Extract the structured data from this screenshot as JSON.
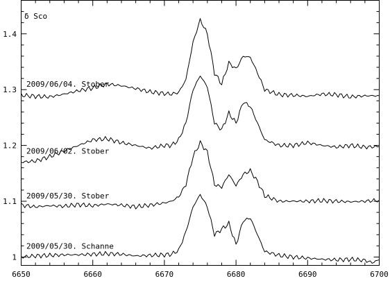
{
  "chart_data": {
    "type": "line",
    "title": "δ Sco",
    "xlabel": "",
    "ylabel": "",
    "xlim": [
      6650,
      6700
    ],
    "ylim": [
      0.985,
      1.46
    ],
    "x_ticks": [
      6650,
      6660,
      6670,
      6680,
      6690,
      6700
    ],
    "y_ticks": [
      1,
      1.1,
      1.2,
      1.3,
      1.4
    ],
    "y_tick_labels": [
      "1",
      "1.1",
      "1.2",
      "1.3",
      "1.4"
    ],
    "grid": false,
    "series": [
      {
        "name": "2009/06/04. Stober",
        "baseline": 1.29,
        "points": [
          [
            6650,
            1.29
          ],
          [
            6652,
            1.288
          ],
          [
            6654,
            1.287
          ],
          [
            6656,
            1.292
          ],
          [
            6658,
            1.298
          ],
          [
            6660,
            1.303
          ],
          [
            6662,
            1.31
          ],
          [
            6664,
            1.307
          ],
          [
            6666,
            1.302
          ],
          [
            6668,
            1.296
          ],
          [
            6670,
            1.293
          ],
          [
            6671,
            1.292
          ],
          [
            6672,
            1.295
          ],
          [
            6673,
            1.318
          ],
          [
            6674,
            1.385
          ],
          [
            6675,
            1.425
          ],
          [
            6676,
            1.4
          ],
          [
            6677,
            1.33
          ],
          [
            6678,
            1.31
          ],
          [
            6679,
            1.348
          ],
          [
            6680,
            1.337
          ],
          [
            6681,
            1.36
          ],
          [
            6682,
            1.358
          ],
          [
            6683,
            1.33
          ],
          [
            6684,
            1.3
          ],
          [
            6686,
            1.291
          ],
          [
            6688,
            1.29
          ],
          [
            6690,
            1.288
          ],
          [
            6692,
            1.292
          ],
          [
            6694,
            1.291
          ],
          [
            6696,
            1.287
          ],
          [
            6698,
            1.289
          ],
          [
            6700,
            1.289
          ]
        ]
      },
      {
        "name": "2009/06/02. Stober",
        "baseline": 1.17,
        "points": [
          [
            6650,
            1.17
          ],
          [
            6652,
            1.172
          ],
          [
            6654,
            1.18
          ],
          [
            6656,
            1.19
          ],
          [
            6658,
            1.2
          ],
          [
            6660,
            1.21
          ],
          [
            6662,
            1.212
          ],
          [
            6664,
            1.205
          ],
          [
            6666,
            1.2
          ],
          [
            6668,
            1.195
          ],
          [
            6670,
            1.2
          ],
          [
            6671,
            1.2
          ],
          [
            6672,
            1.21
          ],
          [
            6673,
            1.24
          ],
          [
            6674,
            1.3
          ],
          [
            6675,
            1.325
          ],
          [
            6676,
            1.305
          ],
          [
            6677,
            1.24
          ],
          [
            6678,
            1.228
          ],
          [
            6679,
            1.258
          ],
          [
            6680,
            1.24
          ],
          [
            6681,
            1.278
          ],
          [
            6682,
            1.27
          ],
          [
            6683,
            1.24
          ],
          [
            6684,
            1.21
          ],
          [
            6686,
            1.2
          ],
          [
            6688,
            1.2
          ],
          [
            6690,
            1.205
          ],
          [
            6692,
            1.2
          ],
          [
            6694,
            1.197
          ],
          [
            6696,
            1.2
          ],
          [
            6698,
            1.197
          ],
          [
            6700,
            1.198
          ]
        ]
      },
      {
        "name": "2009/05/30. Stober",
        "baseline": 1.09,
        "points": [
          [
            6650,
            1.093
          ],
          [
            6652,
            1.09
          ],
          [
            6654,
            1.092
          ],
          [
            6656,
            1.091
          ],
          [
            6658,
            1.094
          ],
          [
            6660,
            1.092
          ],
          [
            6662,
            1.095
          ],
          [
            6664,
            1.093
          ],
          [
            6666,
            1.09
          ],
          [
            6668,
            1.093
          ],
          [
            6670,
            1.097
          ],
          [
            6671,
            1.1
          ],
          [
            6672,
            1.108
          ],
          [
            6673,
            1.13
          ],
          [
            6674,
            1.18
          ],
          [
            6675,
            1.205
          ],
          [
            6676,
            1.188
          ],
          [
            6677,
            1.13
          ],
          [
            6678,
            1.125
          ],
          [
            6679,
            1.148
          ],
          [
            6680,
            1.128
          ],
          [
            6681,
            1.148
          ],
          [
            6682,
            1.155
          ],
          [
            6683,
            1.135
          ],
          [
            6684,
            1.11
          ],
          [
            6686,
            1.1
          ],
          [
            6688,
            1.1
          ],
          [
            6690,
            1.1
          ],
          [
            6692,
            1.101
          ],
          [
            6694,
            1.1
          ],
          [
            6696,
            1.099
          ],
          [
            6698,
            1.1
          ],
          [
            6700,
            1.102
          ]
        ]
      },
      {
        "name": "2009/05/30. Schanne",
        "baseline": 1.0,
        "points": [
          [
            6650,
            1.0
          ],
          [
            6652,
            1.002
          ],
          [
            6654,
            1.003
          ],
          [
            6656,
            1.004
          ],
          [
            6658,
            1.004
          ],
          [
            6660,
            1.005
          ],
          [
            6662,
            1.006
          ],
          [
            6664,
            1.005
          ],
          [
            6666,
            1.002
          ],
          [
            6668,
            1.003
          ],
          [
            6670,
            1.004
          ],
          [
            6671,
            1.005
          ],
          [
            6672,
            1.012
          ],
          [
            6673,
            1.045
          ],
          [
            6674,
            1.09
          ],
          [
            6675,
            1.112
          ],
          [
            6676,
            1.09
          ],
          [
            6677,
            1.04
          ],
          [
            6678,
            1.05
          ],
          [
            6679,
            1.06
          ],
          [
            6680,
            1.022
          ],
          [
            6681,
            1.065
          ],
          [
            6682,
            1.07
          ],
          [
            6683,
            1.04
          ],
          [
            6684,
            1.01
          ],
          [
            6686,
            1.003
          ],
          [
            6688,
            1.0
          ],
          [
            6690,
            0.998
          ],
          [
            6692,
            0.996
          ],
          [
            6694,
            0.995
          ],
          [
            6696,
            0.996
          ],
          [
            6698,
            0.994
          ],
          [
            6699,
            0.99
          ],
          [
            6700,
            0.995
          ]
        ]
      }
    ]
  }
}
